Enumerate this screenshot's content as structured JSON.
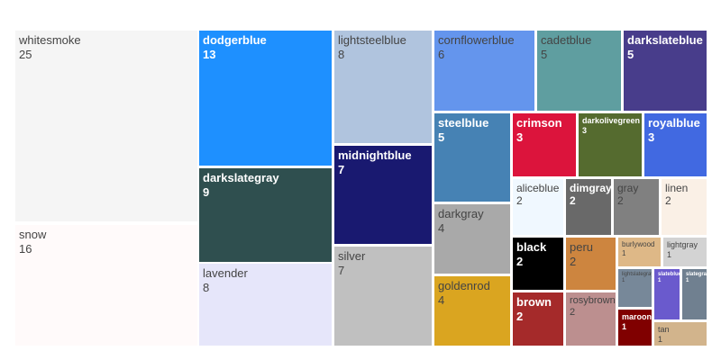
{
  "chart_data": {
    "type": "treemap",
    "title": "",
    "items": [
      {
        "label": "whitesmoke",
        "value": 25,
        "color": "#f5f5f5"
      },
      {
        "label": "snow",
        "value": 16,
        "color": "#fffafa"
      },
      {
        "label": "dodgerblue",
        "value": 13,
        "color": "#1e90ff"
      },
      {
        "label": "darkslategray",
        "value": 9,
        "color": "#2f4f4f"
      },
      {
        "label": "lavender",
        "value": 8,
        "color": "#e6e6fa"
      },
      {
        "label": "lightsteelblue",
        "value": 8,
        "color": "#b0c4de"
      },
      {
        "label": "midnightblue",
        "value": 7,
        "color": "#191970"
      },
      {
        "label": "silver",
        "value": 7,
        "color": "#c0c0c0"
      },
      {
        "label": "cornflowerblue",
        "value": 6,
        "color": "#6495ed"
      },
      {
        "label": "cadetblue",
        "value": 5,
        "color": "#5f9ea0"
      },
      {
        "label": "darkslateblue",
        "value": 5,
        "color": "#483d8b"
      },
      {
        "label": "steelblue",
        "value": 5,
        "color": "#4682b4"
      },
      {
        "label": "darkgray",
        "value": 4,
        "color": "#a9a9a9"
      },
      {
        "label": "goldenrod",
        "value": 4,
        "color": "#daa520"
      },
      {
        "label": "crimson",
        "value": 3,
        "color": "#dc143c"
      },
      {
        "label": "darkolivegreen",
        "value": 3,
        "color": "#556b2f"
      },
      {
        "label": "royalblue",
        "value": 3,
        "color": "#4169e1"
      },
      {
        "label": "aliceblue",
        "value": 2,
        "color": "#f0f8ff"
      },
      {
        "label": "dimgray",
        "value": 2,
        "color": "#696969"
      },
      {
        "label": "gray",
        "value": 2,
        "color": "#808080"
      },
      {
        "label": "linen",
        "value": 2,
        "color": "#faf0e6"
      },
      {
        "label": "black",
        "value": 2,
        "color": "#000000"
      },
      {
        "label": "peru",
        "value": 2,
        "color": "#cd853f"
      },
      {
        "label": "brown",
        "value": 2,
        "color": "#a52a2a"
      },
      {
        "label": "rosybrown",
        "value": 2,
        "color": "#bc8f8f"
      },
      {
        "label": "burlywood",
        "value": 1,
        "color": "#deb887"
      },
      {
        "label": "lightgray",
        "value": 1,
        "color": "#d3d3d3"
      },
      {
        "label": "lightslategray",
        "value": 1,
        "color": "#778899"
      },
      {
        "label": "slateblue",
        "value": 1,
        "color": "#6a5acd"
      },
      {
        "label": "slategray",
        "value": 1,
        "color": "#708090"
      },
      {
        "label": "maroon",
        "value": 1,
        "color": "#800000"
      },
      {
        "label": "tan",
        "value": 1,
        "color": "#d2b48c"
      }
    ]
  }
}
